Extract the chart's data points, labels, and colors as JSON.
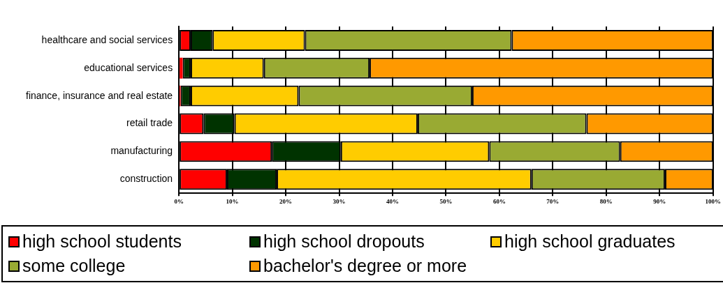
{
  "chart_data": {
    "type": "bar",
    "orientation": "horizontal",
    "stacked": true,
    "categories": [
      "healthcare and social services",
      "educational services",
      "finance, insurance and real estate",
      "retail trade",
      "manufacturing",
      "construction"
    ],
    "series": [
      {
        "name": "high school students",
        "color": "#ff0000",
        "values": [
          2.2,
          0.7,
          0.3,
          4.6,
          17.4,
          9.0
        ]
      },
      {
        "name": "high school dropouts",
        "color": "#003300",
        "values": [
          4.1,
          1.5,
          1.9,
          5.8,
          12.9,
          9.3
        ]
      },
      {
        "name": "high school graduates",
        "color": "#ffcc00",
        "values": [
          17.3,
          13.7,
          20.2,
          34.3,
          27.8,
          47.7
        ]
      },
      {
        "name": "some college",
        "color": "#99aa33",
        "values": [
          38.7,
          19.8,
          32.5,
          31.6,
          24.5,
          25.0
        ]
      },
      {
        "name": "bachelor's degree or more",
        "color": "#ff9900",
        "values": [
          37.7,
          64.3,
          45.1,
          23.7,
          17.4,
          9.0
        ]
      }
    ],
    "xlim": [
      0,
      100
    ],
    "xticks": [
      {
        "value": 0,
        "label": "0%"
      },
      {
        "value": 10,
        "label": "10%"
      },
      {
        "value": 20,
        "label": "20%"
      },
      {
        "value": 30,
        "label": "30%"
      },
      {
        "value": 40,
        "label": "40%"
      },
      {
        "value": 50,
        "label": "50%"
      },
      {
        "value": 60,
        "label": "60%"
      },
      {
        "value": 70,
        "label": "70%"
      },
      {
        "value": 80,
        "label": "80%"
      },
      {
        "value": 90,
        "label": "90%"
      },
      {
        "value": 100,
        "label": "100%"
      }
    ],
    "grid": "x",
    "legend": "bottom"
  }
}
